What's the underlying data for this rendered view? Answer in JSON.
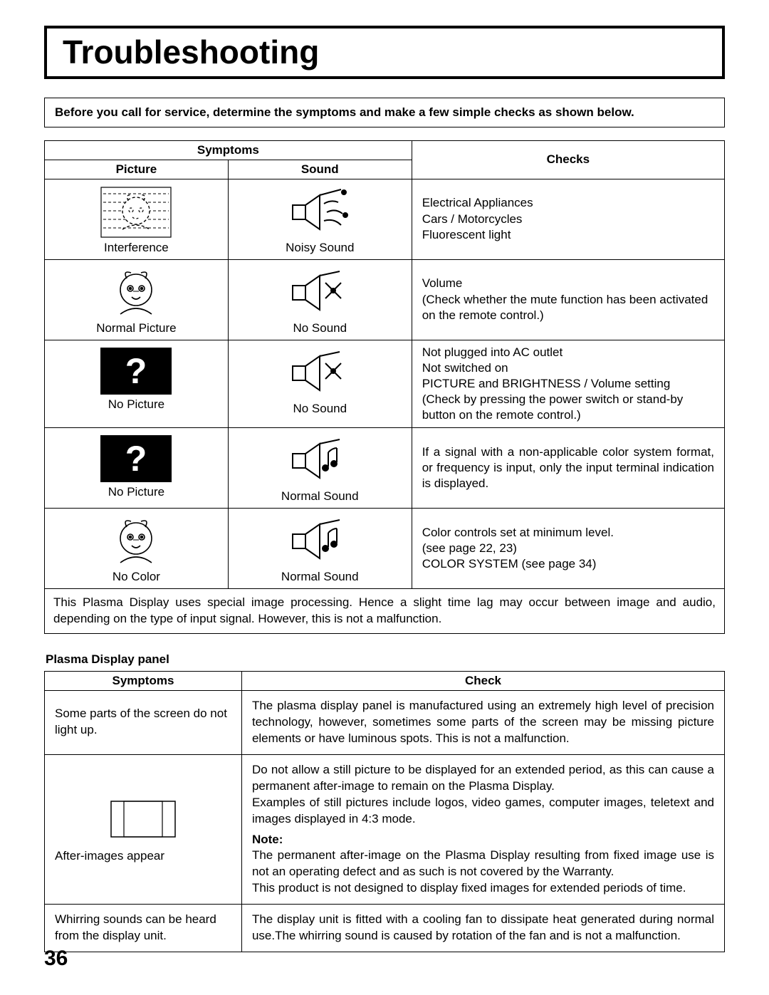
{
  "title": "Troubleshooting",
  "intro": "Before you call for service, determine the symptoms and make a few simple checks as shown below.",
  "headers": {
    "symptoms": "Symptoms",
    "picture": "Picture",
    "sound": "Sound",
    "checks": "Checks",
    "check": "Check"
  },
  "rows": [
    {
      "picture_label": "Interference",
      "sound_label": "Noisy Sound",
      "checks": "Electrical Appliances\nCars / Motorcycles\nFluorescent light"
    },
    {
      "picture_label": "Normal Picture",
      "sound_label": "No Sound",
      "checks": "Volume\n(Check whether the mute function has been activated on the remote control.)"
    },
    {
      "picture_label": "No Picture",
      "sound_label": "No Sound",
      "checks": "Not plugged into AC outlet\nNot switched on\nPICTURE and BRIGHTNESS / Volume setting\n(Check by pressing the power switch or stand-by button on the remote control.)"
    },
    {
      "picture_label": "No Picture",
      "sound_label": "Normal Sound",
      "checks": "If a signal with a non-applicable color system format, or frequency is input, only the input terminal indication is displayed."
    },
    {
      "picture_label": "No Color",
      "sound_label": "Normal Sound",
      "checks": "Color controls set at minimum level.\n(see page 22, 23)\nCOLOR SYSTEM (see page 34)"
    }
  ],
  "note_row": "This Plasma Display uses special image processing. Hence a slight time lag may occur between image and audio, depending on the type of input signal. However, this is not a malfunction.",
  "panel_heading": "Plasma Display panel",
  "panel_rows": [
    {
      "symptom": "Some parts of the screen do not light up.",
      "check": "The plasma display panel is manufactured using an extremely high level of precision technology, however, sometimes some parts of the screen may be missing picture elements or have luminous spots. This is not a malfunction."
    },
    {
      "symptom": "After-images appear",
      "check_main": "Do not allow a still picture to be displayed for an extended period, as this can cause a permanent after-image to remain on the Plasma Display.\nExamples of still pictures include logos, video games, computer images, teletext and images displayed in 4:3 mode.",
      "note_label": "Note:",
      "check_note": "The permanent after-image on the Plasma Display resulting from fixed image use is not an operating defect and as such is not covered by the Warranty.\nThis product is not designed to display fixed images for extended periods of time."
    },
    {
      "symptom": "Whirring sounds can be heard from the display unit.",
      "check": "The display unit is fitted with a cooling fan to dissipate heat generated during normal use.The whirring sound is caused by rotation of the fan and is not a malfunction."
    }
  ],
  "page_number": "36"
}
